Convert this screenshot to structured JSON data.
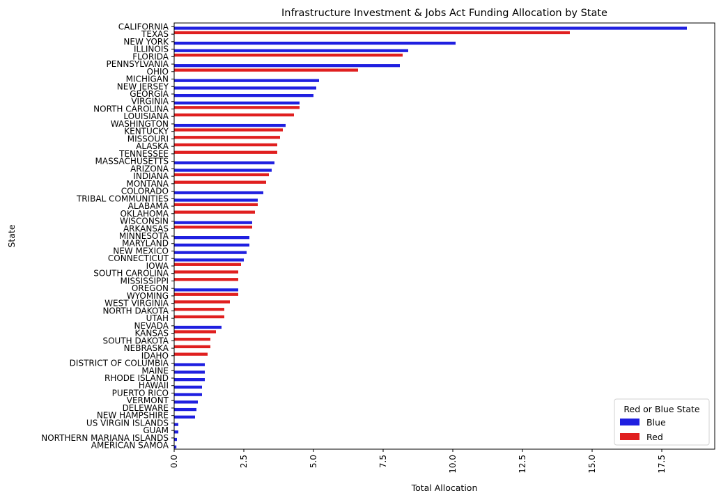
{
  "chart_data": {
    "type": "bar",
    "orientation": "horizontal",
    "title": "Infrastructure Investment & Jobs Act Funding Allocation by State",
    "xlabel": "Total Allocation",
    "ylabel": "State",
    "xlim": [
      0,
      19.4
    ],
    "xticks": [
      "0.0",
      "2.5",
      "5.0",
      "7.5",
      "10.0",
      "12.5",
      "15.0",
      "17.5"
    ],
    "xtick_values": [
      0,
      2.5,
      5,
      7.5,
      10,
      12.5,
      15,
      17.5
    ],
    "grid": false,
    "legend": {
      "title": "Red or Blue State",
      "placement": "bottom-right",
      "entries": [
        {
          "label": "Blue",
          "color": "#1f1fe0"
        },
        {
          "label": "Red",
          "color": "#e01f1f"
        }
      ]
    },
    "series_colors": {
      "Blue": "#1f1fe0",
      "Red": "#e01f1f"
    },
    "categories": [
      "CALIFORNIA",
      "TEXAS",
      "NEW YORK",
      "ILLINOIS",
      "FLORIDA",
      "PENNSYLVANIA",
      "OHIO",
      "MICHIGAN",
      "NEW JERSEY",
      "GEORGIA",
      "VIRGINIA",
      "NORTH CAROLINA",
      "LOUISIANA",
      "WASHINGTON",
      "KENTUCKY",
      "MISSOURI",
      "ALASKA",
      "TENNESSEE",
      "MASSACHUSETTS",
      "ARIZONA",
      "INDIANA",
      "MONTANA",
      "COLORADO",
      "TRIBAL COMMUNITIES",
      "ALABAMA",
      "OKLAHOMA",
      "WISCONSIN",
      "ARKANSAS",
      "MINNESOTA",
      "MARYLAND",
      "NEW MEXICO",
      "CONNECTICUT",
      "IOWA",
      "SOUTH CAROLINA",
      "MISSISSIPPI",
      "OREGON",
      "WYOMING",
      "WEST VIRGINIA",
      "NORTH DAKOTA",
      "UTAH",
      "NEVADA",
      "KANSAS",
      "SOUTH DAKOTA",
      "NEBRASKA",
      "IDAHO",
      "DISTRICT OF COLUMBIA",
      "MAINE",
      "RHODE ISLAND",
      "HAWAII",
      "PUERTO RICO",
      "VERMONT",
      "DELEWARE",
      "NEW HAMPSHIRE",
      "US VIRGIN ISLANDS",
      "GUAM",
      "NORTHERN MARIANA ISLANDS",
      "AMERICAN SAMOA"
    ],
    "values": [
      18.4,
      14.2,
      10.1,
      8.4,
      8.2,
      8.1,
      6.6,
      5.2,
      5.1,
      5.0,
      4.5,
      4.5,
      4.3,
      4.0,
      3.9,
      3.8,
      3.7,
      3.7,
      3.6,
      3.5,
      3.4,
      3.3,
      3.2,
      3.0,
      3.0,
      2.9,
      2.8,
      2.8,
      2.7,
      2.7,
      2.6,
      2.5,
      2.4,
      2.3,
      2.3,
      2.3,
      2.3,
      2.0,
      1.8,
      1.8,
      1.7,
      1.5,
      1.3,
      1.3,
      1.2,
      1.1,
      1.1,
      1.1,
      1.0,
      1.0,
      0.85,
      0.8,
      0.75,
      0.15,
      0.15,
      0.1,
      0.08
    ],
    "colors_by_category": [
      "Blue",
      "Red",
      "Blue",
      "Blue",
      "Red",
      "Blue",
      "Red",
      "Blue",
      "Blue",
      "Blue",
      "Blue",
      "Red",
      "Red",
      "Blue",
      "Red",
      "Red",
      "Red",
      "Red",
      "Blue",
      "Blue",
      "Red",
      "Red",
      "Blue",
      "Blue",
      "Red",
      "Red",
      "Blue",
      "Red",
      "Blue",
      "Blue",
      "Blue",
      "Blue",
      "Red",
      "Red",
      "Red",
      "Blue",
      "Red",
      "Red",
      "Red",
      "Red",
      "Blue",
      "Red",
      "Red",
      "Red",
      "Red",
      "Blue",
      "Blue",
      "Blue",
      "Blue",
      "Blue",
      "Blue",
      "Blue",
      "Blue",
      "Blue",
      "Blue",
      "Blue",
      "Blue"
    ]
  }
}
